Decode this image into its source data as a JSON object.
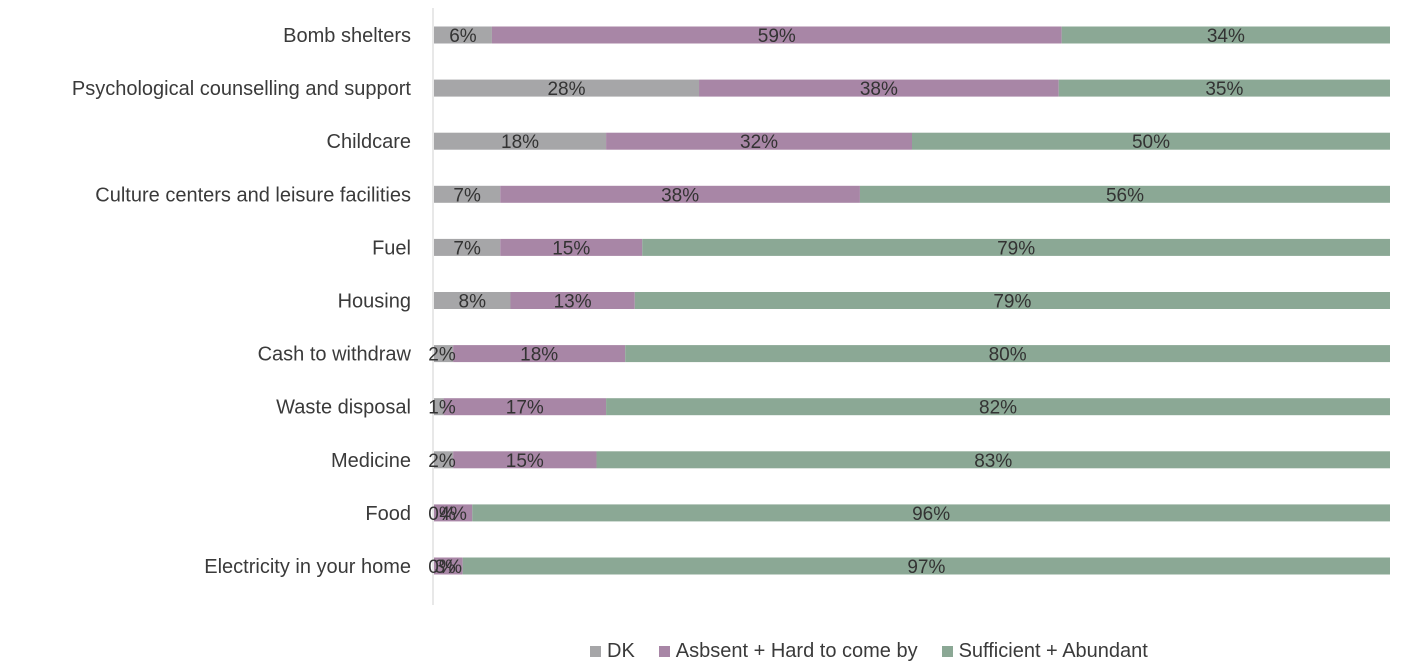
{
  "chart_data": {
    "type": "bar",
    "orientation": "horizontal",
    "stacked": true,
    "title": "",
    "xlabel": "",
    "ylabel": "",
    "xlim": [
      0,
      100
    ],
    "grid": false,
    "legend_position": "bottom",
    "categories": [
      "Bomb shelters",
      "Psychological counselling and support",
      "Childcare",
      "Culture centers and leisure facilities",
      "Fuel",
      "Housing",
      "Cash to withdraw",
      "Waste disposal",
      "Medicine",
      "Food",
      "Electricity in your home"
    ],
    "series": [
      {
        "name": "DK",
        "color": "#a6a6a8",
        "values": [
          6,
          28,
          18,
          7,
          7,
          8,
          2,
          1,
          2,
          0,
          0
        ]
      },
      {
        "name": "Asbsent + Hard to come by",
        "color": "#a886a6",
        "values": [
          59,
          38,
          32,
          38,
          15,
          13,
          18,
          17,
          15,
          4,
          3
        ]
      },
      {
        "name": "Sufficient + Abundant",
        "color": "#8ba895",
        "values": [
          34,
          35,
          50,
          56,
          79,
          79,
          80,
          82,
          83,
          96,
          97
        ]
      }
    ]
  }
}
